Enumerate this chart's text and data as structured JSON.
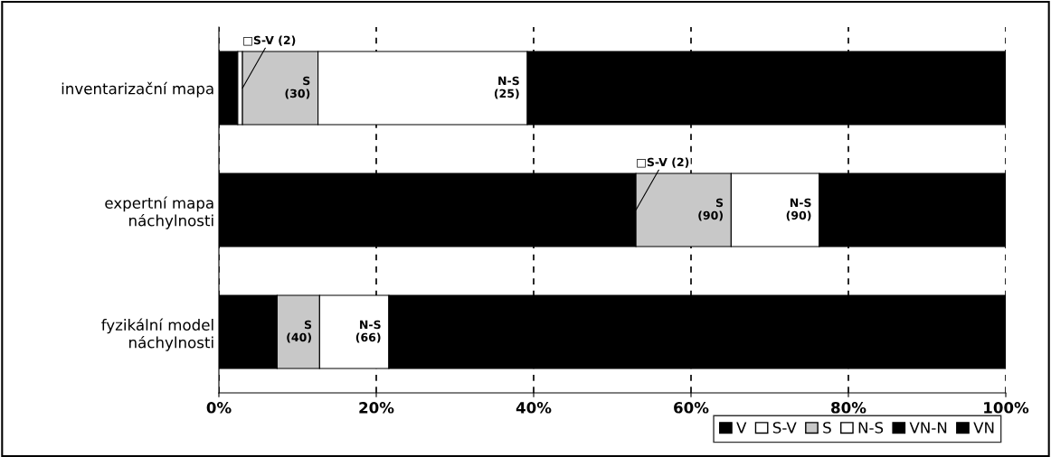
{
  "chart_data": {
    "type": "bar",
    "orientation": "horizontal",
    "stacked": true,
    "categories": [
      "inventarizační mapa",
      "expertní mapa\nnáchylnosti",
      "fyzikální model\nnáchylnosti"
    ],
    "series": [
      {
        "name": "V",
        "color": "#000000",
        "values": [
          2.4,
          53,
          7.4
        ]
      },
      {
        "name": "S-V",
        "color": "#ffffff",
        "values": [
          0.6,
          0,
          0
        ]
      },
      {
        "name": "S",
        "color": "#c8c8c8",
        "values": [
          9.6,
          12.1,
          5.4
        ]
      },
      {
        "name": "N-S",
        "color": "#ffffff",
        "values": [
          26.6,
          11.2,
          8.8
        ]
      },
      {
        "name": "VN-N",
        "color": "#000000",
        "values": [
          60.8,
          23.7,
          78.4
        ]
      },
      {
        "name": "VN",
        "color": "#000000",
        "values": [
          null,
          null,
          null
        ]
      }
    ],
    "xlim": [
      0,
      100
    ],
    "xticks": [
      {
        "value": 0,
        "label": "0%"
      },
      {
        "value": 20,
        "label": "20%"
      },
      {
        "value": 40,
        "label": "40%"
      },
      {
        "value": 60,
        "label": "60%"
      },
      {
        "value": 80,
        "label": "80%"
      },
      {
        "value": 100,
        "label": "100%"
      }
    ],
    "grid": "x",
    "legend": "bottom right",
    "annotations": [
      {
        "text": "□S-V (2)",
        "x": 3.0,
        "y": "inventarizační mapa"
      },
      {
        "text": "S\n(30)",
        "x": 12.6,
        "y": "inventarizační mapa"
      },
      {
        "text": "N-S\n(25)",
        "x": 39.2,
        "y": "inventarizační mapa"
      },
      {
        "text": "□S-V (2)",
        "x": 53,
        "y": "expertní mapa\nnáchylnosti"
      },
      {
        "text": "S\n(90)",
        "x": 65.1,
        "y": "expertní mapa\nnáchylnosti"
      },
      {
        "text": "N-S\n(90)",
        "x": 76.3,
        "y": "expertní mapa\nnáchylnosti"
      },
      {
        "text": "S\n(40)",
        "x": 12.8,
        "y": "fyzikální model\nnáchylnosti"
      },
      {
        "text": "N-S\n(66)",
        "x": 21.6,
        "y": "fyzikální model\nnáchylnosti"
      }
    ]
  }
}
